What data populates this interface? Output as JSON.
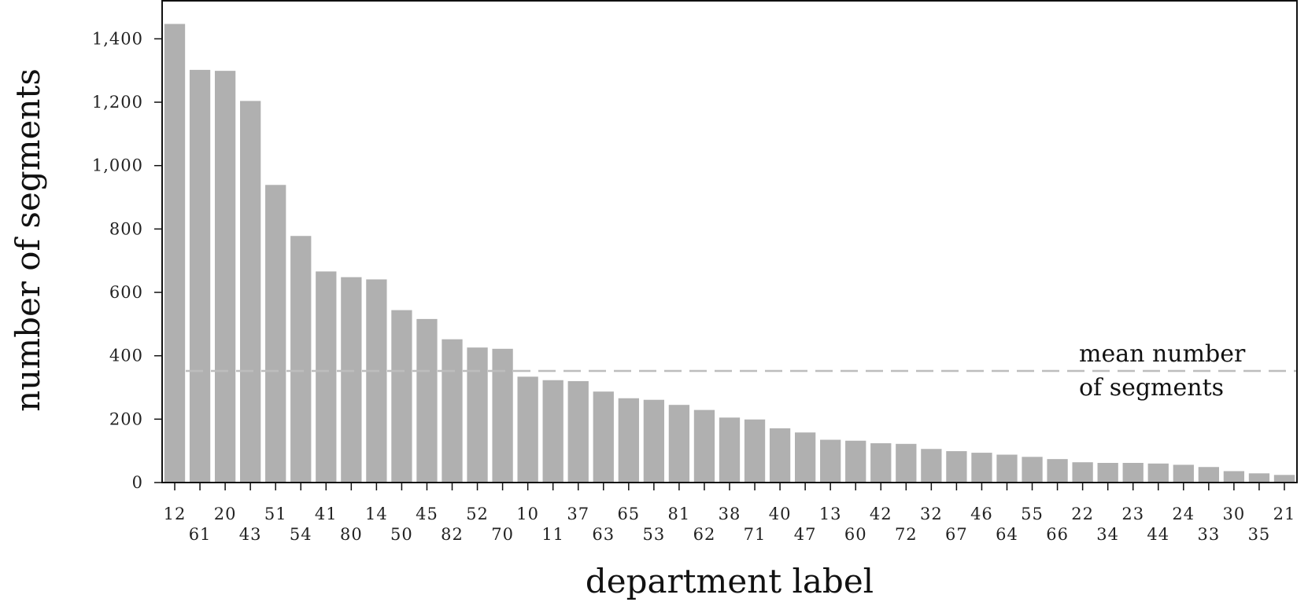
{
  "chart_data": {
    "type": "bar",
    "title": "",
    "xlabel": "department label",
    "ylabel": "number of segments",
    "ylim": [
      0,
      1520
    ],
    "yticks": [
      0,
      200,
      400,
      600,
      800,
      1000,
      1200,
      1400
    ],
    "ytick_labels": [
      "0",
      "200",
      "400",
      "600",
      "800",
      "1,000",
      "1,200",
      "1,400"
    ],
    "grid": false,
    "bar_color": "#b0b0b0",
    "mean_line": {
      "value": 352,
      "label_line1": "mean number",
      "label_line2": "of segments",
      "color": "#bdbdbd"
    },
    "categories": [
      "12",
      "61",
      "20",
      "43",
      "51",
      "54",
      "41",
      "80",
      "14",
      "50",
      "45",
      "82",
      "52",
      "70",
      "10",
      "11",
      "37",
      "63",
      "65",
      "53",
      "81",
      "62",
      "38",
      "71",
      "40",
      "47",
      "13",
      "60",
      "42",
      "72",
      "32",
      "67",
      "46",
      "64",
      "55",
      "66",
      "22",
      "34",
      "23",
      "44",
      "24",
      "33",
      "30",
      "35",
      "21"
    ],
    "values": [
      1447,
      1302,
      1299,
      1204,
      939,
      778,
      666,
      648,
      641,
      544,
      516,
      452,
      426,
      422,
      334,
      323,
      320,
      287,
      266,
      261,
      245,
      229,
      205,
      199,
      171,
      158,
      135,
      132,
      124,
      122,
      106,
      99,
      94,
      88,
      81,
      74,
      64,
      62,
      62,
      60,
      56,
      49,
      36,
      29,
      24
    ]
  }
}
